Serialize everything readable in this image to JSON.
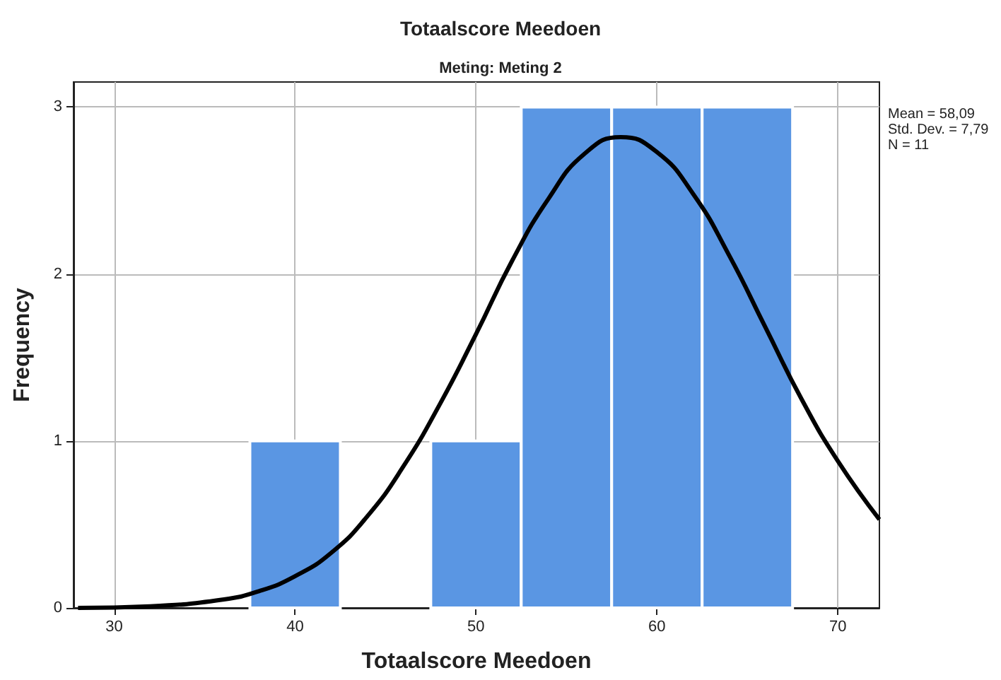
{
  "chart_data": {
    "type": "histogram",
    "title": "Totaalscore Meedoen",
    "subtitle": "Meting: Meting 2",
    "xlabel": "Totaalscore Meedoen",
    "ylabel": "Frequency",
    "annotations": [
      "Mean = 58,09",
      "Std. Dev. = 7,79",
      "N = 11"
    ],
    "xlim": [
      27.75,
      72.3
    ],
    "xticks": [
      30,
      40,
      50,
      60,
      70
    ],
    "ylim": [
      0,
      3.15
    ],
    "yticks": [
      0,
      1,
      2,
      3
    ],
    "grid": true,
    "series": [
      {
        "color": "#5a96e3",
        "bins": [
          37.5,
          42.5,
          47.5,
          52.5,
          57.5,
          62.5,
          67.5
        ],
        "values": [
          1,
          0,
          1,
          3,
          3,
          3
        ]
      },
      {
        "type": "line",
        "color": "#000000",
        "x": [
          28,
          32,
          36,
          38,
          40,
          42,
          44,
          46,
          48,
          50,
          52,
          54,
          56,
          58,
          60,
          62,
          64,
          66,
          68,
          70,
          72.3
        ],
        "values": [
          0.0,
          0.01,
          0.05,
          0.1,
          0.19,
          0.33,
          0.55,
          0.85,
          1.22,
          1.64,
          2.08,
          2.45,
          2.72,
          2.82,
          2.73,
          2.48,
          2.11,
          1.68,
          1.25,
          0.88,
          0.53
        ]
      }
    ]
  }
}
